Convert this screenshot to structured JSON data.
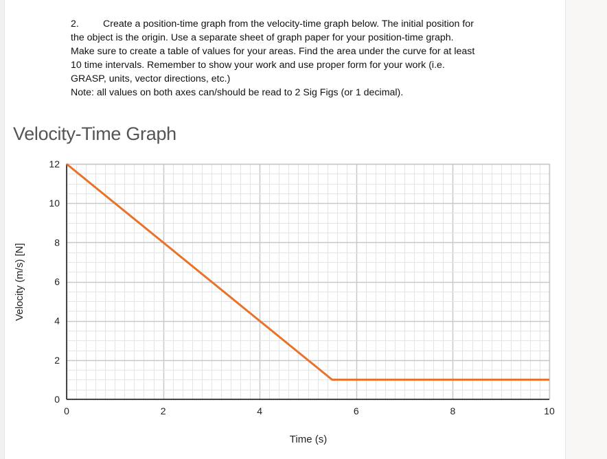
{
  "instructions": {
    "number": "2.",
    "line1": "Create a position-time graph from the velocity-time graph below.  The initial position for",
    "line2": "the object is the origin.  Use a separate sheet of graph paper for your position-time graph.",
    "line3": "Make sure to create a table of values for your areas.  Find the area under the curve for at least",
    "line4": "10 time intervals.  Remember to show your work and use proper form for your work (i.e.",
    "line5": "GRASP, units, vector directions, etc.)",
    "line6": "Note: all values on both axes can/should be read to 2 Sig Figs (or 1 decimal)."
  },
  "chart_data": {
    "type": "line",
    "title": "Velocity-Time Graph",
    "xlabel": "Time (s)",
    "ylabel": "Velocity (m/s) [N]",
    "xlim": [
      0,
      10
    ],
    "ylim": [
      0,
      12
    ],
    "x_ticks": [
      "0",
      "2",
      "4",
      "6",
      "8",
      "10"
    ],
    "y_ticks": [
      "0",
      "2",
      "4",
      "6",
      "8",
      "10",
      "12"
    ],
    "grid": true,
    "minor_grid": {
      "x_step": 0.2,
      "y_step": 0.5
    },
    "legend": null,
    "series": [
      {
        "name": "velocity",
        "color": "#E8722A",
        "x": [
          0,
          5.5,
          10
        ],
        "y": [
          12,
          1,
          1
        ]
      }
    ]
  }
}
